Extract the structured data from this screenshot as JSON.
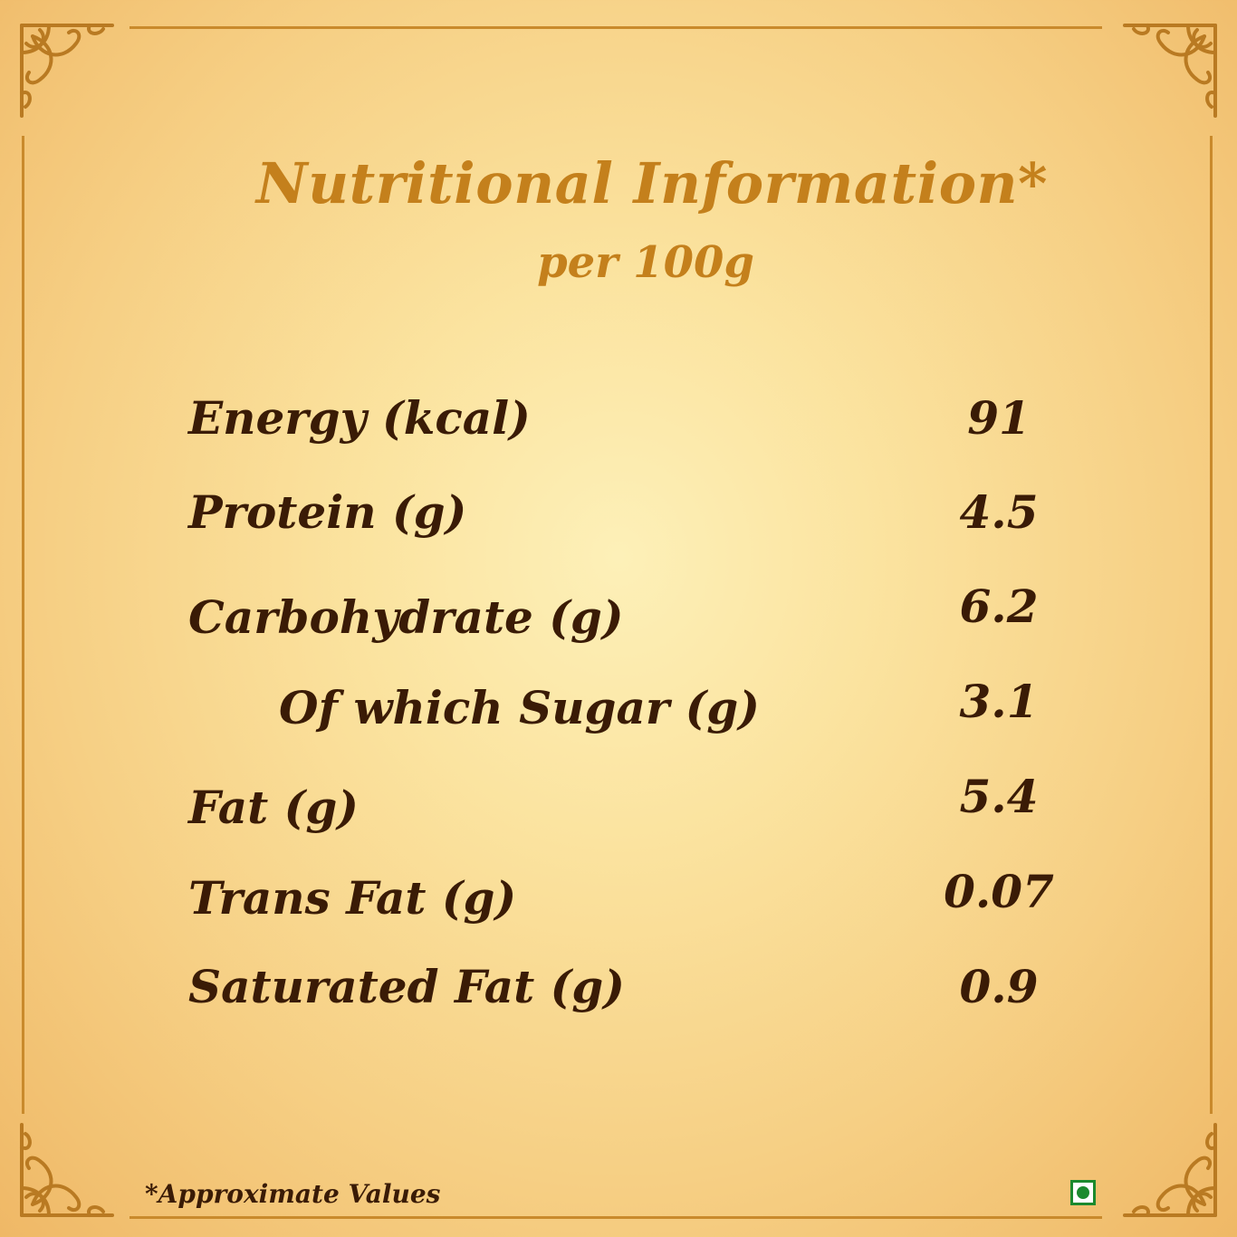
{
  "header": {
    "title": "Nutritional Information*",
    "subtitle": "per 100g"
  },
  "nutrients": [
    {
      "label": "Energy (kcal)",
      "value": "91"
    },
    {
      "label": "Protein (g)",
      "value": "4.5"
    },
    {
      "label": "Carbohydrate (g)",
      "value": "6.2"
    },
    {
      "label": "Of which Sugar (g)",
      "value": "3.1"
    },
    {
      "label": "Fat (g)",
      "value": "5.4"
    },
    {
      "label": "Trans Fat (g)",
      "value": "0.07"
    },
    {
      "label": "Saturated Fat (g)",
      "value": "0.9"
    }
  ],
  "footer": {
    "note": "*Approximate Values"
  },
  "icons": {
    "corner": "floral-ornament-icon",
    "veg": "vegetarian-mark-icon"
  },
  "colors": {
    "title": "#c4801c",
    "text": "#3a1b06",
    "border": "#c98a2c",
    "veg": "#1c8a2e"
  }
}
